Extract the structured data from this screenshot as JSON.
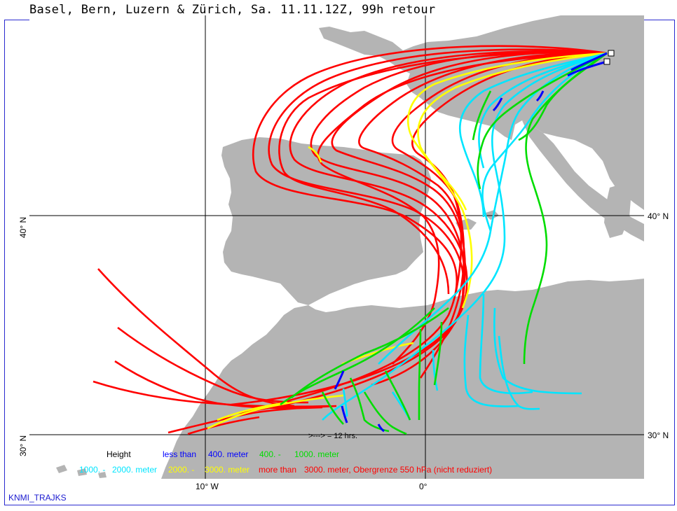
{
  "title": "Basel, Bern, Luzern & Zürich, Sa. 11.11.12Z, 99h retour",
  "footer": "KNMI_TRAJKS",
  "axes": {
    "lat_labels": [
      "40° N",
      "30° N"
    ],
    "lon_labels": [
      "10° W",
      "0°"
    ]
  },
  "arrow_note": ">---> = 12 hrs.",
  "legend": {
    "title": "Height",
    "row1": [
      {
        "text": "less than",
        "color": "#0000ff"
      },
      {
        "text": "400. meter",
        "color": "#0000ff"
      },
      {
        "text": "400. -",
        "color": "#00cc00"
      },
      {
        "text": "1000. meter",
        "color": "#00cc00"
      }
    ],
    "row2": [
      {
        "text": "1000. -",
        "color": "#00e5ff"
      },
      {
        "text": "2000. meter",
        "color": "#00e5ff"
      },
      {
        "text": "2000. -",
        "color": "#ffff00"
      },
      {
        "text": "3000. meter",
        "color": "#ffff00"
      },
      {
        "text": "more than",
        "color": "#ff0000"
      },
      {
        "text": "3000. meter, Obergrenze 550 hPa (nicht reduziert)",
        "color": "#ff0000"
      }
    ]
  },
  "colors": {
    "land": "#b4b4b4",
    "sea": "#ffffff",
    "grid": "#000000",
    "frame": "#2a2ad0",
    "low": "#0000ff",
    "mid_low": "#00dd00",
    "mid": "#00e5ff",
    "mid_high": "#ffff00",
    "high": "#ff0000"
  }
}
